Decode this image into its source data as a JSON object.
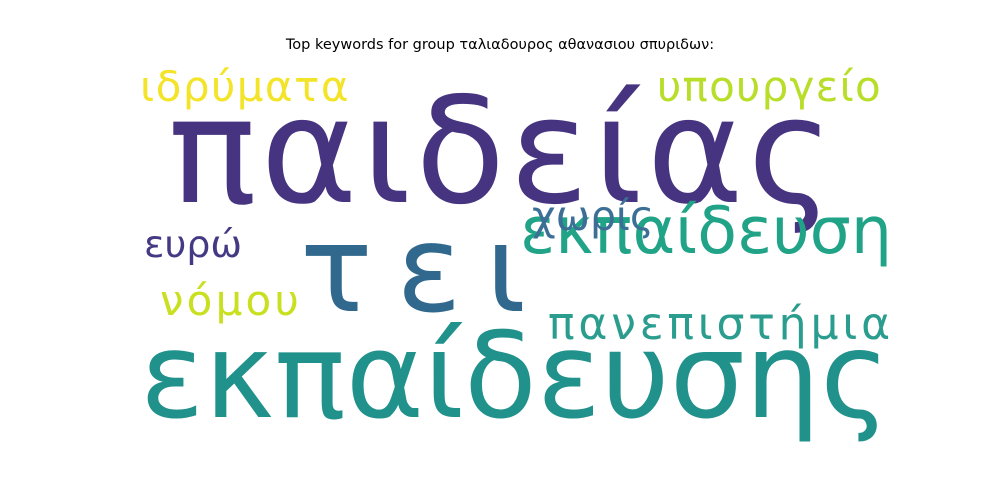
{
  "title": "Top keywords for group ταλιαδουρος αθανασιου σπυριδων:",
  "words": [
    {
      "text": "παιδείας",
      "color": "#463480"
    },
    {
      "text": "τει",
      "color": "#31688e"
    },
    {
      "text": "εκπαίδευσης",
      "color": "#21918c"
    },
    {
      "text": "εκπαίδευση",
      "color": "#20a386"
    },
    {
      "text": "πανεπιστήμια",
      "color": "#2a9d8f"
    },
    {
      "text": "χωρίς",
      "color": "#3b6f96"
    },
    {
      "text": "ιδρύματα",
      "color": "#f3e42a"
    },
    {
      "text": "υπουργείο",
      "color": "#b8de29"
    },
    {
      "text": "ευρώ",
      "color": "#443983"
    },
    {
      "text": "νόμου",
      "color": "#c9e020"
    }
  ]
}
